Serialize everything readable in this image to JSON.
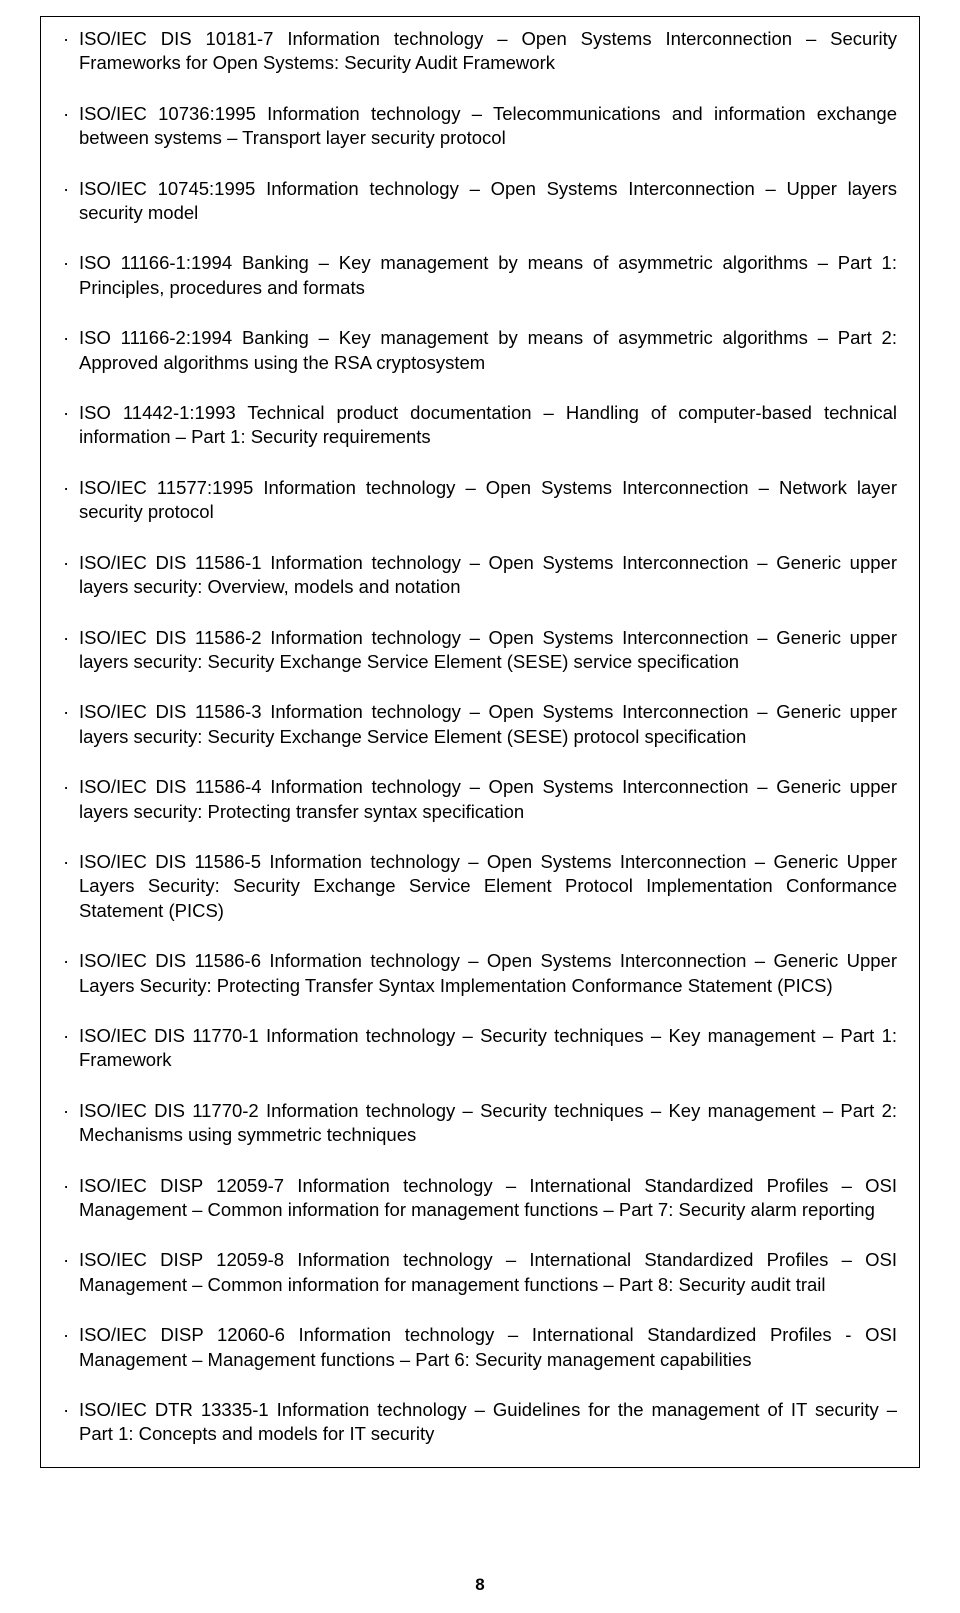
{
  "page_number": "8",
  "bullet_char": "·",
  "items": [
    "ISO/IEC DIS 10181-7 Information technology – Open Systems Interconnection – Security Frameworks for Open Systems: Security Audit Framework",
    "ISO/IEC 10736:1995 Information technology – Telecommunications and information exchange between systems – Transport layer security protocol",
    "ISO/IEC 10745:1995 Information technology – Open Systems Interconnection – Upper layers security model",
    "ISO 11166-1:1994 Banking – Key management by means of asymmetric algorithms – Part 1: Principles, procedures and formats",
    "ISO 11166-2:1994 Banking – Key management by means of asymmetric algorithms – Part 2: Approved algorithms using the RSA cryptosystem",
    "ISO 11442-1:1993 Technical product documentation – Handling of computer-based technical information – Part 1: Security requirements",
    "ISO/IEC 11577:1995 Information technology – Open Systems Interconnection – Network layer security protocol",
    "ISO/IEC DIS 11586-1 Information technology – Open Systems Interconnection – Generic upper layers security: Overview, models and notation",
    "ISO/IEC DIS 11586-2 Information technology – Open Systems Interconnection – Generic upper layers security: Security Exchange Service Element (SESE) service specification",
    "ISO/IEC DIS 11586-3 Information technology – Open Systems Interconnection – Generic upper layers security: Security Exchange Service Element (SESE) protocol specification",
    "ISO/IEC DIS 11586-4 Information technology – Open Systems Interconnection – Generic upper layers security: Protecting transfer syntax specification",
    "ISO/IEC DIS 11586-5 Information technology – Open Systems Interconnection – Generic Upper Layers Security: Security Exchange Service Element Protocol Implementation Conformance Statement (PICS)",
    "ISO/IEC DIS 11586-6 Information technology – Open Systems Interconnection – Generic Upper Layers Security: Protecting Transfer Syntax Implementation Conformance Statement (PICS)",
    "ISO/IEC DIS 11770-1 Information technology – Security techniques – Key management – Part 1: Framework",
    "ISO/IEC DIS 11770-2 Information technology – Security techniques – Key management – Part 2: Mechanisms using symmetric techniques",
    "ISO/IEC DISP 12059-7 Information technology – International Standardized Profiles – OSI Management – Common information for management functions – Part 7: Security alarm reporting",
    "ISO/IEC DISP 12059-8 Information technology – International Standardized Profiles – OSI Management – Common information for management functions – Part 8: Security audit trail",
    "ISO/IEC DISP 12060-6 Information technology – International Standardized Profiles - OSI Management – Management functions – Part 6: Security management capabilities",
    "ISO/IEC DTR 13335-1 Information technology – Guidelines for the management of IT security – Part 1: Concepts and models for IT security"
  ]
}
